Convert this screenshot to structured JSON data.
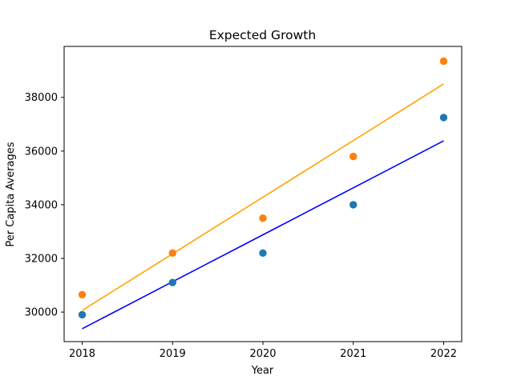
{
  "chart_data": {
    "type": "scatter",
    "title": "Expected Growth",
    "xlabel": "Year",
    "ylabel": "Per Capita Averages",
    "x": [
      2018,
      2019,
      2020,
      2021,
      2022
    ],
    "xlim": [
      2017.8,
      2022.2
    ],
    "ylim": [
      28900,
      39900
    ],
    "x_ticks": [
      "2018",
      "2019",
      "2020",
      "2021",
      "2022"
    ],
    "y_ticks": [
      "30000",
      "32000",
      "34000",
      "36000",
      "38000"
    ],
    "grid": false,
    "series": [
      {
        "color": "#1f77b4",
        "values": [
          29900,
          31100,
          32200,
          34000,
          37250
        ],
        "fit_color": "#0000ff",
        "fit": [
          29380,
          31130,
          32880,
          34630,
          36380
        ]
      },
      {
        "color": "#ff7f0e",
        "values": [
          30650,
          32200,
          33500,
          35800,
          39350
        ],
        "fit_color": "#ffa500",
        "fit": [
          30060,
          32170,
          34280,
          36390,
          38500
        ]
      }
    ]
  }
}
